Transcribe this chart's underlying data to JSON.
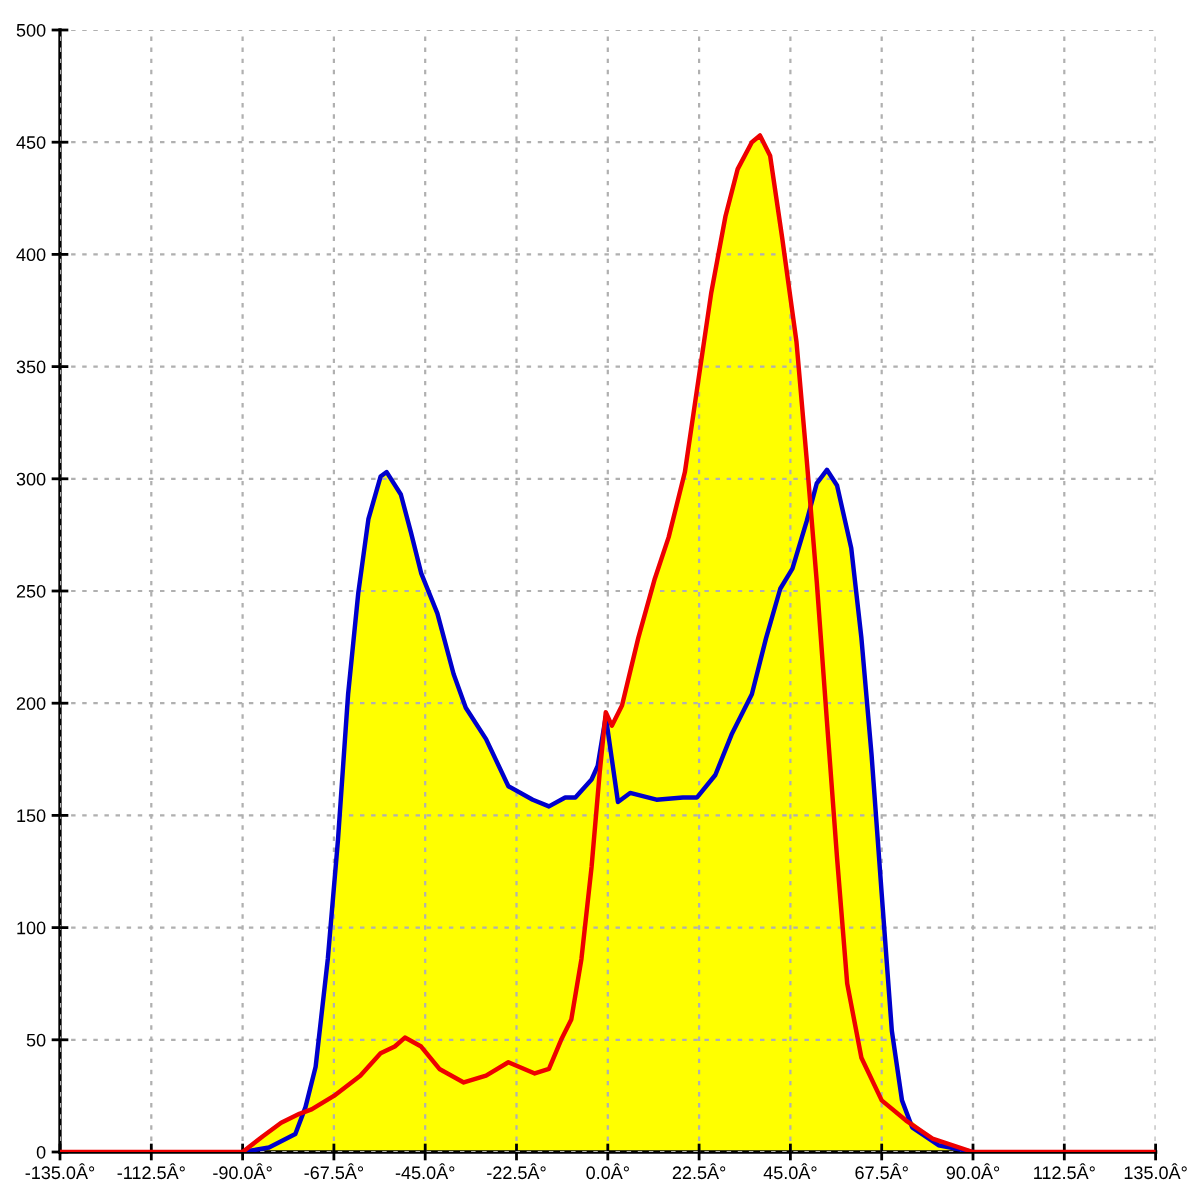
{
  "chart_data": {
    "type": "line",
    "xlim": [
      -135,
      135
    ],
    "ylim": [
      0,
      500
    ],
    "xticks": [
      {
        "value": -135,
        "label": "-135.0Â°"
      },
      {
        "value": -112.5,
        "label": "-112.5Â°"
      },
      {
        "value": -90,
        "label": "-90.0Â°"
      },
      {
        "value": -67.5,
        "label": "-67.5Â°"
      },
      {
        "value": -45,
        "label": "-45.0Â°"
      },
      {
        "value": -22.5,
        "label": "-22.5Â°"
      },
      {
        "value": 0,
        "label": "0.0Â°"
      },
      {
        "value": 22.5,
        "label": "22.5Â°"
      },
      {
        "value": 45,
        "label": "45.0Â°"
      },
      {
        "value": 67.5,
        "label": "67.5Â°"
      },
      {
        "value": 90,
        "label": "90.0Â°"
      },
      {
        "value": 112.5,
        "label": "112.5Â°"
      },
      {
        "value": 135,
        "label": "135.0Â°"
      }
    ],
    "yticks": [
      0,
      50,
      100,
      150,
      200,
      250,
      300,
      350,
      400,
      450,
      500
    ],
    "grid": true,
    "line_style": "solid",
    "series": [
      {
        "type": "area",
        "color": "#ffff00",
        "x": [
          -90,
          -85,
          -80.5,
          -76,
          -74.5,
          -72,
          -69,
          -66.5,
          -64,
          -61.5,
          -59,
          -56,
          -54.5,
          -51,
          -48.5,
          -46,
          -42,
          -38,
          -35,
          -30,
          -24.5,
          -18.5,
          -14.5,
          -10.5,
          -8,
          -4,
          -2.5,
          -0.5,
          1,
          3.5,
          7.5,
          11.5,
          15,
          19,
          22,
          25.5,
          29,
          32,
          35.5,
          37.5,
          40,
          43,
          46.5,
          49.5,
          51.5,
          54,
          56.5,
          60,
          62.5,
          65,
          67.5,
          70,
          72.5,
          73.5,
          80,
          90
        ],
        "values": [
          0,
          7,
          13,
          17,
          20,
          38,
          86,
          139,
          204,
          249,
          282,
          301,
          303,
          293,
          276,
          258,
          240,
          213,
          198,
          184,
          163,
          157,
          154,
          158,
          158,
          166,
          172,
          196,
          190,
          199,
          229,
          255,
          274,
          303,
          340,
          383,
          417,
          438,
          450,
          453,
          444,
          407,
          361,
          290,
          298,
          304,
          297,
          269,
          229,
          177,
          115,
          54,
          23,
          16,
          6,
          0
        ]
      },
      {
        "color": "#0000cc",
        "x": [
          -90,
          -83.5,
          -77,
          -74.5,
          -72,
          -69,
          -66.5,
          -64,
          -61.5,
          -59,
          -56,
          -54.5,
          -51,
          -48.5,
          -46,
          -42,
          -38,
          -35,
          -30,
          -24.5,
          -18.5,
          -14.5,
          -10.5,
          -8,
          -4,
          -2.5,
          -0.5,
          1,
          2.5,
          5.5,
          12,
          18.5,
          22,
          26.5,
          30.5,
          35.5,
          39,
          42.5,
          45.5,
          49,
          51.5,
          54,
          56.5,
          60,
          62.5,
          65,
          67.5,
          70,
          72.5,
          75,
          81.5,
          90
        ],
        "values": [
          0,
          2,
          8,
          20,
          38,
          86,
          139,
          204,
          249,
          282,
          301,
          303,
          293,
          276,
          258,
          240,
          213,
          198,
          184,
          163,
          157,
          154,
          158,
          158,
          166,
          172,
          194,
          175,
          156,
          160,
          157,
          158,
          158,
          168,
          186,
          204,
          229,
          251,
          260,
          281,
          298,
          304,
          297,
          269,
          229,
          177,
          115,
          54,
          23,
          11,
          3,
          0
        ]
      },
      {
        "color": "#ee0000",
        "x": [
          -135,
          -90,
          -85,
          -80.5,
          -76,
          -73,
          -67.5,
          -61,
          -56,
          -52.5,
          -50,
          -46,
          -41.5,
          -35.5,
          -30,
          -24.5,
          -18,
          -14.5,
          -11.5,
          -9,
          -6.5,
          -4,
          -2,
          -0.5,
          1,
          3.5,
          7.5,
          11.5,
          15,
          19,
          22,
          25.5,
          29,
          32,
          35.5,
          37.5,
          40,
          43,
          46.5,
          49,
          51.5,
          54,
          56.5,
          59,
          62.5,
          67.5,
          73.5,
          80,
          90,
          135
        ],
        "values": [
          0,
          0,
          7,
          13,
          17,
          19,
          25,
          34,
          44,
          47,
          51,
          47,
          37,
          31,
          34,
          40,
          35,
          37,
          50,
          59,
          86,
          127,
          169,
          196,
          190,
          199,
          229,
          255,
          274,
          303,
          340,
          383,
          417,
          438,
          450,
          453,
          444,
          407,
          361,
          309,
          254,
          192,
          131,
          75,
          42,
          23,
          14,
          6,
          0,
          0
        ]
      }
    ]
  }
}
